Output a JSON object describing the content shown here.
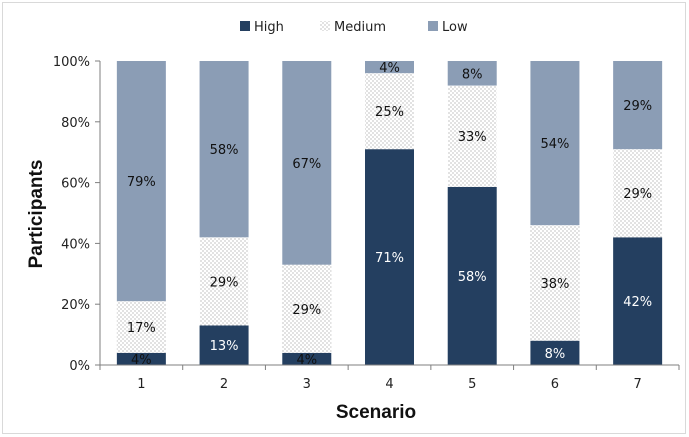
{
  "chart_data": {
    "type": "bar",
    "stacked": true,
    "percent": true,
    "xlabel": "Scenario",
    "ylabel": "Participants",
    "categories": [
      "1",
      "2",
      "3",
      "4",
      "5",
      "6",
      "7"
    ],
    "ylim": [
      0,
      100
    ],
    "yticks": [
      "0%",
      "20%",
      "40%",
      "60%",
      "80%",
      "100%"
    ],
    "legend_position": "top-center",
    "series": [
      {
        "name": "High",
        "values": [
          4,
          13,
          4,
          71,
          58,
          8,
          42
        ],
        "labels": [
          "4%",
          "13%",
          "4%",
          "71%",
          "58%",
          "8%",
          "42%"
        ],
        "color": "#243f60",
        "pattern": "solid"
      },
      {
        "name": "Medium",
        "values": [
          17,
          29,
          29,
          25,
          33,
          38,
          29
        ],
        "labels": [
          "17%",
          "29%",
          "29%",
          "25%",
          "33%",
          "38%",
          "29%"
        ],
        "color": "#ffffff",
        "pattern": "dots"
      },
      {
        "name": "Low",
        "values": [
          79,
          58,
          67,
          4,
          8,
          54,
          29
        ],
        "labels": [
          "79%",
          "58%",
          "67%",
          "4%",
          "8%",
          "54%",
          "29%"
        ],
        "color": "#8b9db5",
        "pattern": "solid"
      }
    ],
    "grid": false
  }
}
